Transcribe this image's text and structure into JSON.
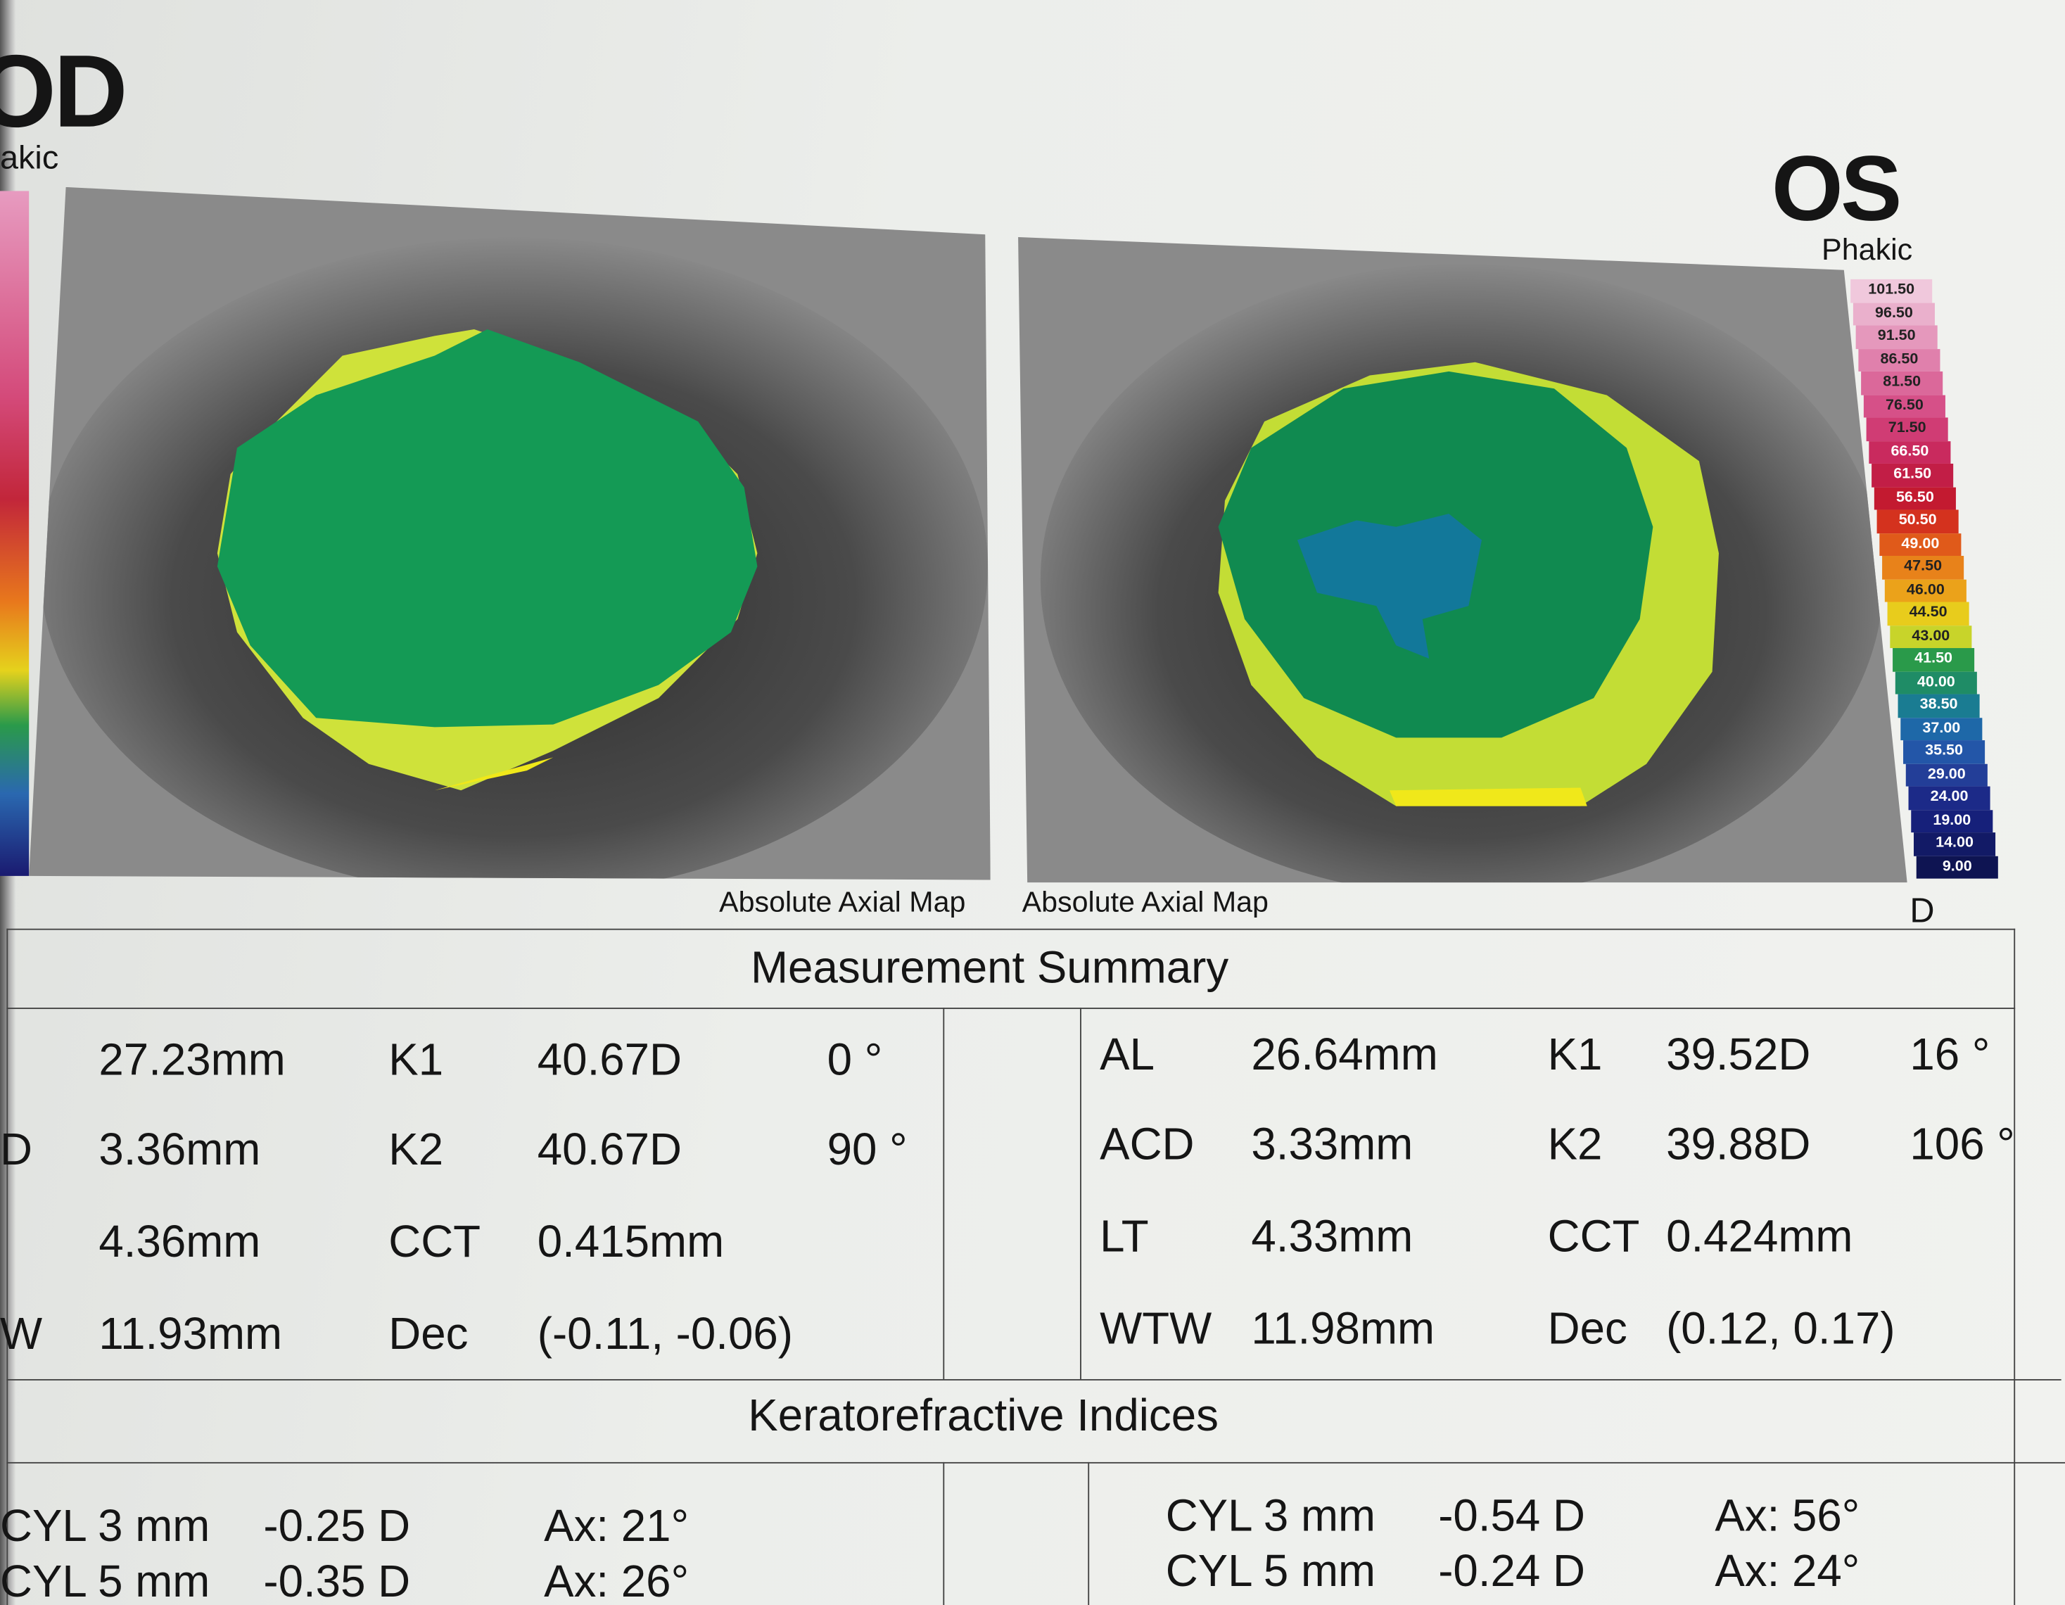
{
  "od": {
    "title": "OD",
    "status": "akic",
    "map_label": "Absolute Axial Map",
    "rows": [
      {
        "value": "27.23mm",
        "k_label": "K1",
        "k_value": "40.67D",
        "axis": "0 °"
      },
      {
        "label": "D",
        "value": "3.36mm",
        "k_label": "K2",
        "k_value": "40.67D",
        "axis": "90 °"
      },
      {
        "value": "4.36mm",
        "k_label": "CCT",
        "k_value": "0.415mm"
      },
      {
        "label": "W",
        "value": "11.93mm",
        "k_label": "Dec",
        "k_value": "(-0.11, -0.06)"
      }
    ],
    "indices": [
      {
        "label": "CYL 3 mm",
        "value": "-0.25 D",
        "axis": "Ax: 21°"
      },
      {
        "label": "CYL 5 mm",
        "value": "-0.35 D",
        "axis": "Ax: 26°"
      }
    ]
  },
  "os": {
    "title": "OS",
    "status": "Phakic",
    "map_label": "Absolute Axial Map",
    "rows": [
      {
        "label": "AL",
        "value": "26.64mm",
        "k_label": "K1",
        "k_value": "39.52D",
        "axis": "16 °"
      },
      {
        "label": "ACD",
        "value": "3.33mm",
        "k_label": "K2",
        "k_value": "39.88D",
        "axis": "106 °"
      },
      {
        "label": "LT",
        "value": "4.33mm",
        "k_label": "CCT",
        "k_value": "0.424mm"
      },
      {
        "label": "WTW",
        "value": "11.98mm",
        "k_label": "Dec",
        "k_value": "(0.12, 0.17)"
      }
    ],
    "indices": [
      {
        "label": "CYL 3 mm",
        "value": "-0.54 D",
        "axis": "Ax: 56°"
      },
      {
        "label": "CYL 5 mm",
        "value": "-0.24 D",
        "axis": "Ax: 24°"
      }
    ]
  },
  "color_scale": {
    "labels": [
      "101.50",
      "96.50",
      "91.50",
      "86.50",
      "81.50",
      "76.50",
      "71.50",
      "66.50",
      "61.50",
      "56.50",
      "50.50",
      "49.00",
      "47.50",
      "46.00",
      "44.50",
      "43.00",
      "41.50",
      "40.00",
      "38.50",
      "37.00",
      "35.50",
      "29.00",
      "24.00",
      "19.00",
      "14.00",
      "9.00"
    ],
    "unit": "D"
  },
  "measurement_title": "Measurement Summary",
  "indices_title": "Keratorefractive Indices"
}
